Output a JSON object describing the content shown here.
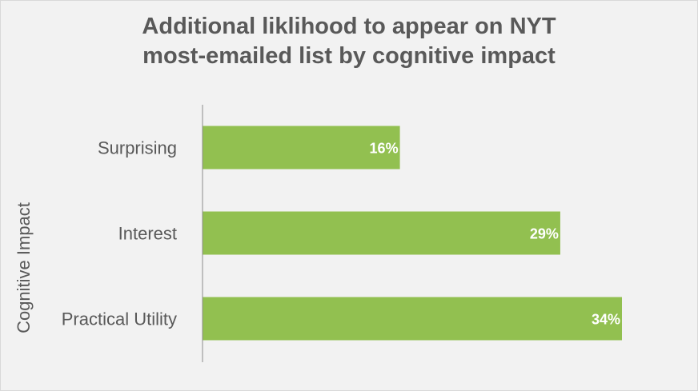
{
  "chart_data": {
    "type": "bar",
    "orientation": "horizontal",
    "title_lines": [
      "Additional liklihood to appear on NYT",
      "most-emailed list by cognitive impact"
    ],
    "ylabel": "Cognitive Impact",
    "categories": [
      "Surprising",
      "Interest",
      "Practical Utility"
    ],
    "values": [
      16,
      29,
      34
    ],
    "value_labels": [
      "16%",
      "29%",
      "34%"
    ],
    "xlim": [
      0,
      34
    ],
    "grid": false,
    "x_axis_visible": false,
    "colors": {
      "bar": "#92c050",
      "label": "#ffffff",
      "text": "#595959",
      "background": "#f2f2f2",
      "axis": "#8c8c8c"
    }
  }
}
